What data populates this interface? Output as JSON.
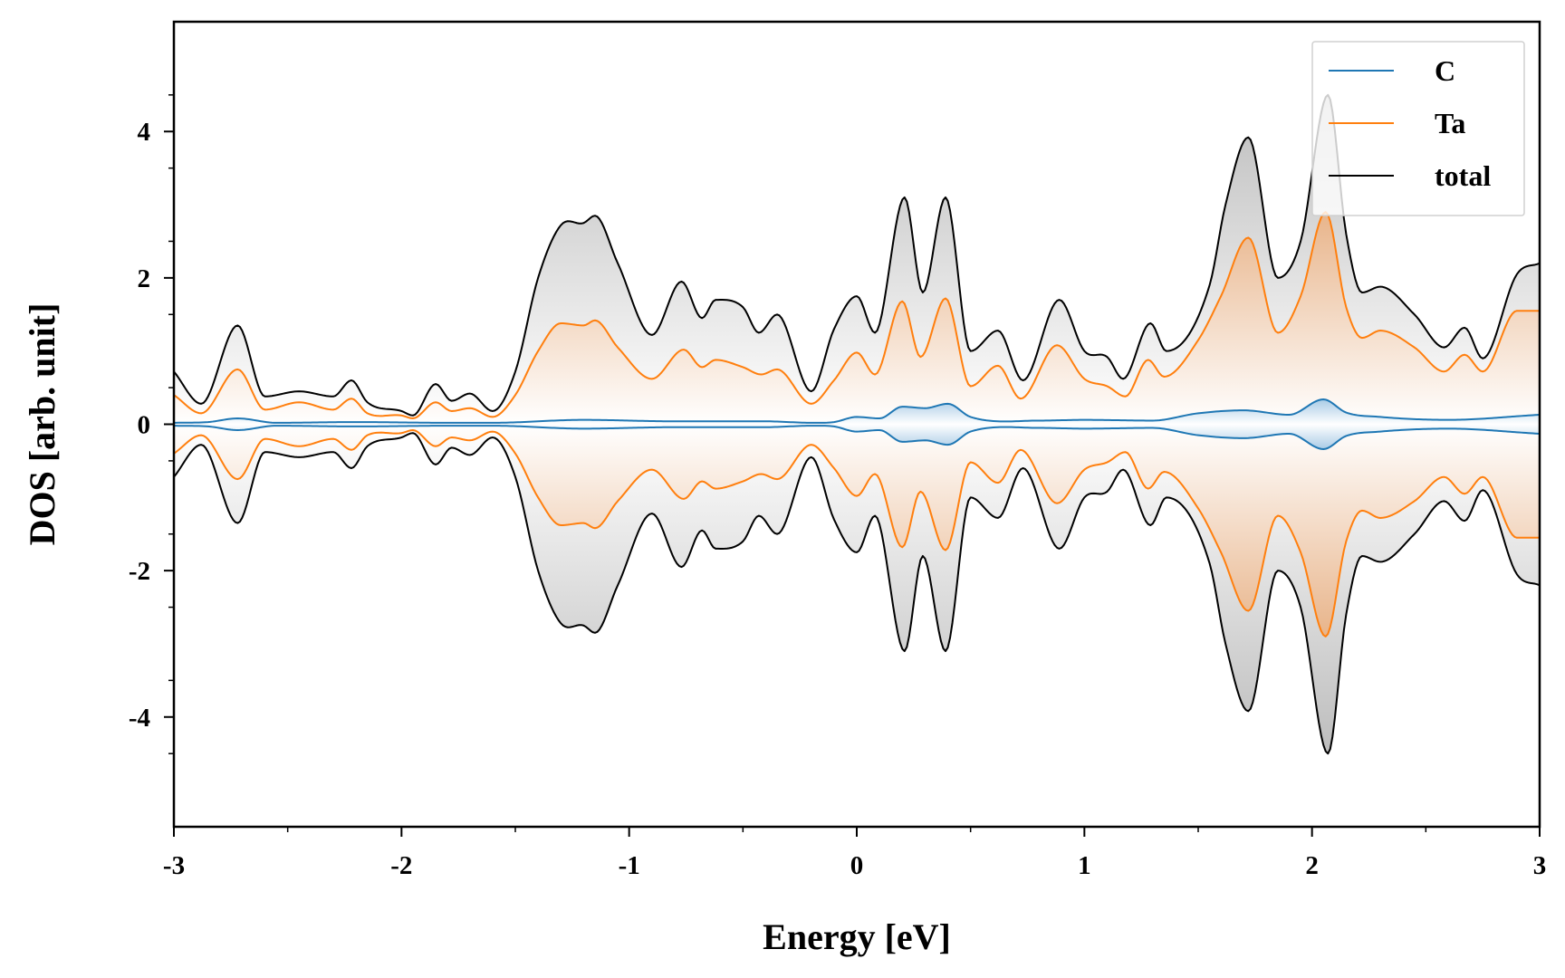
{
  "chart_data": {
    "type": "line",
    "xlabel": "Energy [eV]",
    "ylabel": "DOS [arb. unit]",
    "xlim": [
      -3,
      3
    ],
    "ylim": [
      -5.5,
      5.5
    ],
    "x_ticks": [
      -3,
      -2,
      -1,
      0,
      1,
      2,
      3
    ],
    "x_tick_labels": [
      "-3",
      "-2",
      "-1",
      "0",
      "1",
      "2",
      "3"
    ],
    "y_ticks": [
      -4,
      -2,
      0,
      2,
      4
    ],
    "y_tick_labels": [
      "-4",
      "-2",
      "0",
      "2",
      "4"
    ],
    "grid": false,
    "legend_position": "top-right",
    "mirrored_spin_down": true,
    "series": [
      {
        "name": "C",
        "color": "#1f77b4",
        "fill": true,
        "x": [
          -3.0,
          -2.85,
          -2.72,
          -2.55,
          -2.2,
          -1.8,
          -1.6,
          -1.2,
          -0.8,
          -0.4,
          -0.2,
          -0.1,
          0.0,
          0.1,
          0.2,
          0.3,
          0.4,
          0.5,
          0.8,
          1.0,
          1.3,
          1.5,
          1.7,
          1.9,
          2.05,
          2.15,
          2.3,
          2.6,
          3.0
        ],
        "values": [
          0.02,
          0.03,
          0.08,
          0.02,
          0.03,
          0.02,
          0.02,
          0.06,
          0.04,
          0.04,
          0.02,
          0.03,
          0.1,
          0.08,
          0.24,
          0.22,
          0.28,
          0.1,
          0.05,
          0.06,
          0.05,
          0.15,
          0.19,
          0.13,
          0.34,
          0.16,
          0.1,
          0.06,
          0.13
        ]
      },
      {
        "name": "Ta",
        "color": "#ff7f0e",
        "fill": true,
        "x": [
          -3.0,
          -2.88,
          -2.72,
          -2.6,
          -2.45,
          -2.3,
          -2.22,
          -2.15,
          -2.0,
          -1.95,
          -1.85,
          -1.78,
          -1.7,
          -1.6,
          -1.5,
          -1.4,
          -1.3,
          -1.2,
          -1.15,
          -1.05,
          -0.9,
          -0.76,
          -0.68,
          -0.62,
          -0.5,
          -0.42,
          -0.35,
          -0.2,
          -0.1,
          0.0,
          0.08,
          0.2,
          0.28,
          0.39,
          0.5,
          0.62,
          0.72,
          0.88,
          1.0,
          1.1,
          1.18,
          1.28,
          1.35,
          1.5,
          1.6,
          1.72,
          1.85,
          1.95,
          2.06,
          2.15,
          2.22,
          2.3,
          2.45,
          2.58,
          2.67,
          2.75,
          2.9,
          3.0
        ],
        "values": [
          0.4,
          0.15,
          0.75,
          0.2,
          0.3,
          0.2,
          0.35,
          0.15,
          0.12,
          0.08,
          0.3,
          0.18,
          0.22,
          0.1,
          0.4,
          1.0,
          1.38,
          1.35,
          1.42,
          1.05,
          0.62,
          1.02,
          0.78,
          0.88,
          0.78,
          0.68,
          0.75,
          0.28,
          0.6,
          0.98,
          0.68,
          1.68,
          0.92,
          1.72,
          0.52,
          0.8,
          0.35,
          1.08,
          0.62,
          0.52,
          0.38,
          0.88,
          0.65,
          1.15,
          1.75,
          2.55,
          1.25,
          1.75,
          2.9,
          1.6,
          1.18,
          1.28,
          1.05,
          0.72,
          0.95,
          0.72,
          1.55,
          1.55
        ]
      },
      {
        "name": "total",
        "color": "#000000",
        "fill": true,
        "x": [
          -3.0,
          -2.88,
          -2.72,
          -2.6,
          -2.45,
          -2.3,
          -2.22,
          -2.15,
          -2.0,
          -1.95,
          -1.85,
          -1.78,
          -1.7,
          -1.6,
          -1.5,
          -1.4,
          -1.3,
          -1.2,
          -1.15,
          -1.05,
          -0.9,
          -0.77,
          -0.68,
          -0.62,
          -0.5,
          -0.43,
          -0.35,
          -0.2,
          -0.1,
          0.0,
          0.08,
          0.21,
          0.29,
          0.39,
          0.5,
          0.62,
          0.73,
          0.89,
          1.0,
          1.1,
          1.17,
          1.29,
          1.36,
          1.55,
          1.62,
          1.72,
          1.85,
          1.95,
          2.07,
          2.15,
          2.22,
          2.3,
          2.45,
          2.58,
          2.67,
          2.75,
          2.9,
          3.0
        ],
        "values": [
          0.72,
          0.28,
          1.35,
          0.38,
          0.45,
          0.38,
          0.6,
          0.3,
          0.18,
          0.12,
          0.55,
          0.32,
          0.42,
          0.18,
          0.72,
          2.0,
          2.72,
          2.75,
          2.85,
          2.2,
          1.22,
          1.95,
          1.45,
          1.7,
          1.6,
          1.25,
          1.5,
          0.45,
          1.3,
          1.75,
          1.25,
          3.1,
          1.8,
          3.1,
          1.0,
          1.28,
          0.6,
          1.7,
          1.0,
          0.92,
          0.62,
          1.38,
          1.0,
          1.9,
          3.0,
          3.92,
          2.0,
          2.5,
          4.5,
          2.6,
          1.8,
          1.88,
          1.5,
          1.05,
          1.32,
          0.9,
          2.05,
          2.2
        ]
      }
    ]
  }
}
